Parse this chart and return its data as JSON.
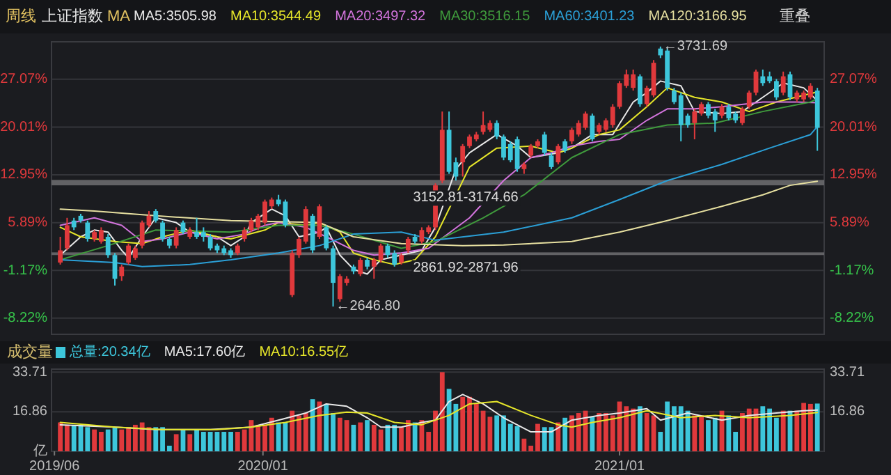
{
  "chart_data": [
    {
      "type": "candlestick",
      "title": "上证指数",
      "legend": "top left",
      "grid": "y",
      "tick_labels": "y",
      "annotations": [
        "周线",
        "MA",
        "重叠",
        {
          "text": "←2646.80",
          "x": "2020-03-13",
          "y": -6.5
        },
        {
          "text": "←3731.69",
          "x": "2021-02-12",
          "y": 31.9
        }
      ],
      "xlim": [
        "2019-05-29",
        "2021-07-30"
      ],
      "ylim": [
        -10.6,
        32.6
      ],
      "yticks": [
        {
          "value": -8.22,
          "label": "-8.22%"
        },
        {
          "value": -1.17,
          "label": "-1.17%"
        },
        {
          "value": 5.89,
          "label": "5.89%"
        },
        {
          "value": 12.95,
          "label": "12.95%"
        },
        {
          "value": 20.01,
          "label": "20.01%"
        },
        {
          "value": 27.07,
          "label": "27.07%"
        }
      ],
      "y2lim": [
        -10.6,
        32.6
      ],
      "y2ticks": [
        {
          "value": -8.22,
          "label": "-8.22%"
        },
        {
          "value": -1.17,
          "label": "-1.17%"
        },
        {
          "value": 5.89,
          "label": "5.89%"
        },
        {
          "value": 12.95,
          "label": "12.95%"
        },
        {
          "value": 20.01,
          "label": "20.01%"
        },
        {
          "value": 27.07,
          "label": "27.07%"
        }
      ],
      "bands": [
        {
          "axis": "y",
          "from": 11.4,
          "to": 12.2,
          "label": "3152.81-3174.66",
          "color": "#6e6e72"
        },
        {
          "axis": "y",
          "from": 1.1,
          "to": 1.5,
          "label": "2861.92-2871.96",
          "color": "#6e6e72"
        }
      ],
      "x": [
        "2019-06-07",
        "2019-06-14",
        "2019-06-21",
        "2019-06-28",
        "2019-07-05",
        "2019-07-12",
        "2019-07-19",
        "2019-07-26",
        "2019-08-02",
        "2019-08-09",
        "2019-08-16",
        "2019-08-23",
        "2019-08-30",
        "2019-09-06",
        "2019-09-13",
        "2019-09-20",
        "2019-09-27",
        "2019-10-04",
        "2019-10-11",
        "2019-10-18",
        "2019-10-25",
        "2019-11-01",
        "2019-11-08",
        "2019-11-15",
        "2019-11-22",
        "2019-11-29",
        "2019-12-06",
        "2019-12-13",
        "2019-12-20",
        "2019-12-27",
        "2020-01-03",
        "2020-01-10",
        "2020-01-17",
        "2020-01-24",
        "2020-01-31",
        "2020-02-07",
        "2020-02-14",
        "2020-02-21",
        "2020-02-28",
        "2020-03-06",
        "2020-03-13",
        "2020-03-20",
        "2020-03-27",
        "2020-04-03",
        "2020-04-10",
        "2020-04-17",
        "2020-04-24",
        "2020-05-01",
        "2020-05-08",
        "2020-05-15",
        "2020-05-22",
        "2020-05-29",
        "2020-06-05",
        "2020-06-12",
        "2020-06-19",
        "2020-06-26",
        "2020-07-03",
        "2020-07-10",
        "2020-07-17",
        "2020-07-24",
        "2020-07-31",
        "2020-08-07",
        "2020-08-14",
        "2020-08-21",
        "2020-08-28",
        "2020-09-04",
        "2020-09-11",
        "2020-09-18",
        "2020-09-25",
        "2020-10-02",
        "2020-10-09",
        "2020-10-16",
        "2020-10-23",
        "2020-10-30",
        "2020-11-06",
        "2020-11-13",
        "2020-11-20",
        "2020-11-27",
        "2020-12-04",
        "2020-12-11",
        "2020-12-18",
        "2020-12-25",
        "2021-01-01",
        "2021-01-08",
        "2021-01-15",
        "2021-01-22",
        "2021-01-29",
        "2021-02-05",
        "2021-02-12",
        "2021-02-19",
        "2021-02-26",
        "2021-03-05",
        "2021-03-12",
        "2021-03-19",
        "2021-03-26",
        "2021-04-02",
        "2021-04-09",
        "2021-04-16",
        "2021-04-23",
        "2021-04-30",
        "2021-05-07",
        "2021-05-14",
        "2021-05-21",
        "2021-05-28",
        "2021-06-04",
        "2021-06-11",
        "2021-06-18",
        "2021-06-25",
        "2021-07-02",
        "2021-07-09",
        "2021-07-16",
        "2021-07-23"
      ],
      "ohlc": [
        [
          0.0,
          3.8,
          -0.3,
          1.8
        ],
        [
          2.1,
          6.6,
          1.8,
          5.5
        ],
        [
          6.2,
          6.6,
          4.8,
          5.2
        ],
        [
          6.9,
          7.2,
          5.9,
          6.2
        ],
        [
          5.9,
          6.2,
          3.1,
          3.5
        ],
        [
          3.5,
          4.8,
          3.1,
          4.5
        ],
        [
          3.1,
          5.2,
          2.8,
          4.8
        ],
        [
          3.8,
          4.2,
          0.7,
          1.1
        ],
        [
          1.1,
          1.4,
          -3.4,
          -2.4
        ],
        [
          -2.0,
          -0.3,
          -2.7,
          -0.6
        ],
        [
          0.0,
          2.8,
          -0.3,
          2.5
        ],
        [
          0.7,
          2.5,
          0.4,
          2.1
        ],
        [
          2.5,
          6.2,
          2.1,
          5.9
        ],
        [
          5.5,
          7.6,
          5.2,
          6.9
        ],
        [
          7.6,
          7.9,
          5.9,
          6.2
        ],
        [
          5.9,
          6.2,
          3.1,
          3.5
        ],
        [
          3.5,
          3.8,
          2.1,
          2.5
        ],
        [
          2.5,
          5.2,
          2.1,
          4.8
        ],
        [
          5.9,
          6.2,
          4.2,
          4.5
        ],
        [
          3.8,
          5.2,
          3.5,
          4.8
        ],
        [
          4.5,
          6.6,
          3.5,
          3.8
        ],
        [
          4.5,
          5.2,
          3.1,
          3.8
        ],
        [
          3.8,
          4.2,
          1.8,
          2.1
        ],
        [
          2.5,
          2.8,
          1.4,
          1.8
        ],
        [
          2.1,
          2.5,
          1.1,
          1.4
        ],
        [
          1.8,
          2.1,
          0.7,
          1.1
        ],
        [
          1.4,
          2.8,
          1.1,
          2.5
        ],
        [
          3.5,
          5.2,
          3.1,
          4.8
        ],
        [
          4.8,
          6.6,
          4.5,
          6.2
        ],
        [
          5.2,
          7.2,
          4.8,
          6.9
        ],
        [
          5.9,
          9.3,
          5.5,
          9.0
        ],
        [
          8.3,
          9.6,
          7.9,
          9.3
        ],
        [
          9.3,
          10.0,
          8.3,
          8.6
        ],
        [
          9.0,
          9.3,
          5.2,
          5.5
        ],
        [
          -4.8,
          1.8,
          -5.1,
          1.4
        ],
        [
          1.1,
          3.8,
          0.7,
          3.5
        ],
        [
          3.1,
          8.3,
          2.8,
          7.9
        ],
        [
          6.9,
          7.2,
          1.4,
          1.8
        ],
        [
          3.8,
          8.6,
          3.5,
          8.3
        ],
        [
          5.2,
          5.5,
          1.8,
          2.1
        ],
        [
          2.1,
          2.5,
          -6.5,
          -3.0
        ],
        [
          -5.4,
          -1.7,
          -5.8,
          -2.0
        ],
        [
          -3.0,
          -2.0,
          -3.4,
          -2.4
        ],
        [
          -0.6,
          -0.3,
          -1.7,
          -1.3
        ],
        [
          -1.7,
          0.7,
          -2.0,
          0.4
        ],
        [
          0.4,
          0.7,
          -1.0,
          -0.6
        ],
        [
          -0.6,
          0.7,
          -2.4,
          0.4
        ],
        [
          0.4,
          2.8,
          0.0,
          2.5
        ],
        [
          2.5,
          2.8,
          0.7,
          1.1
        ],
        [
          1.4,
          1.8,
          -0.6,
          -0.3
        ],
        [
          0.0,
          1.4,
          -0.3,
          1.1
        ],
        [
          1.8,
          3.8,
          1.4,
          3.5
        ],
        [
          3.8,
          4.2,
          2.8,
          3.1
        ],
        [
          3.1,
          5.2,
          2.8,
          4.8
        ],
        [
          4.5,
          5.5,
          4.2,
          5.2
        ],
        [
          5.2,
          11.7,
          4.8,
          11.4
        ],
        [
          12.1,
          22.3,
          11.7,
          19.6
        ],
        [
          19.6,
          22.3,
          13.1,
          13.4
        ],
        [
          14.8,
          15.5,
          12.1,
          12.7
        ],
        [
          14.8,
          17.5,
          12.7,
          17.2
        ],
        [
          17.2,
          18.9,
          16.9,
          18.6
        ],
        [
          18.2,
          19.3,
          17.9,
          18.9
        ],
        [
          19.3,
          22.3,
          18.9,
          20.3
        ],
        [
          19.6,
          21.0,
          19.3,
          20.6
        ],
        [
          20.6,
          21.0,
          18.2,
          18.6
        ],
        [
          18.6,
          18.9,
          15.1,
          15.5
        ],
        [
          17.5,
          17.9,
          14.8,
          15.1
        ],
        [
          18.2,
          18.6,
          13.4,
          13.8
        ],
        [
          13.8,
          14.8,
          13.1,
          14.5
        ],
        [
          15.8,
          17.5,
          15.5,
          17.2
        ],
        [
          17.2,
          18.2,
          16.9,
          17.9
        ],
        [
          18.9,
          19.3,
          15.8,
          16.2
        ],
        [
          15.8,
          16.2,
          13.8,
          14.1
        ],
        [
          14.8,
          17.5,
          14.5,
          17.2
        ],
        [
          17.9,
          18.2,
          16.2,
          16.5
        ],
        [
          17.9,
          19.9,
          17.5,
          19.6
        ],
        [
          18.9,
          21.0,
          18.6,
          20.6
        ],
        [
          19.9,
          22.3,
          19.6,
          22.0
        ],
        [
          21.7,
          22.0,
          17.9,
          18.2
        ],
        [
          19.3,
          20.6,
          18.9,
          20.3
        ],
        [
          19.6,
          21.3,
          19.3,
          21.0
        ],
        [
          20.3,
          23.4,
          19.9,
          23.0
        ],
        [
          23.0,
          26.8,
          22.7,
          26.5
        ],
        [
          26.1,
          28.5,
          25.8,
          27.8
        ],
        [
          25.8,
          28.5,
          25.4,
          27.8
        ],
        [
          27.5,
          27.8,
          23.0,
          23.4
        ],
        [
          23.4,
          26.1,
          23.0,
          25.8
        ],
        [
          24.7,
          29.9,
          24.4,
          29.5
        ],
        [
          31.6,
          31.9,
          30.2,
          30.6
        ],
        [
          31.3,
          31.6,
          25.4,
          25.8
        ],
        [
          25.4,
          25.8,
          23.4,
          23.7
        ],
        [
          24.7,
          25.1,
          17.9,
          20.3
        ],
        [
          21.7,
          22.0,
          19.9,
          20.3
        ],
        [
          20.6,
          22.7,
          18.2,
          22.3
        ],
        [
          22.0,
          23.7,
          21.7,
          23.4
        ],
        [
          23.4,
          23.7,
          21.3,
          21.7
        ],
        [
          22.3,
          22.7,
          19.3,
          21.0
        ],
        [
          21.7,
          23.4,
          21.3,
          23.0
        ],
        [
          23.0,
          23.4,
          21.0,
          21.3
        ],
        [
          22.0,
          22.3,
          20.6,
          21.0
        ],
        [
          20.6,
          23.0,
          20.3,
          22.7
        ],
        [
          23.0,
          25.4,
          22.7,
          25.1
        ],
        [
          25.1,
          28.5,
          24.7,
          28.2
        ],
        [
          27.5,
          28.5,
          26.1,
          26.5
        ],
        [
          27.5,
          28.2,
          26.5,
          26.8
        ],
        [
          26.8,
          27.1,
          24.0,
          24.4
        ],
        [
          25.1,
          28.2,
          24.7,
          27.5
        ],
        [
          27.8,
          28.2,
          24.0,
          24.4
        ],
        [
          24.1,
          25.4,
          23.7,
          25.1
        ],
        [
          24.1,
          25.4,
          23.7,
          25.1
        ],
        [
          24.4,
          26.5,
          24.1,
          26.1
        ],
        [
          25.4,
          25.8,
          16.5,
          19.9
        ]
      ],
      "colors": [
        "#e0393c",
        "#e0393c",
        "#3dc6db",
        "#3dc6db",
        "#3dc6db",
        "#e0393c",
        "#e0393c",
        "#3dc6db",
        "#3dc6db",
        "#e0393c",
        "#e0393c",
        "#e0393c",
        "#e0393c",
        "#e0393c",
        "#3dc6db",
        "#3dc6db",
        "#3dc6db",
        "#e0393c",
        "#3dc6db",
        "#e0393c",
        "#3dc6db",
        "#3dc6db",
        "#3dc6db",
        "#3dc6db",
        "#3dc6db",
        "#3dc6db",
        "#e0393c",
        "#e0393c",
        "#e0393c",
        "#e0393c",
        "#e0393c",
        "#e0393c",
        "#3dc6db",
        "#3dc6db",
        "#e0393c",
        "#e0393c",
        "#e0393c",
        "#3dc6db",
        "#e0393c",
        "#3dc6db",
        "#3dc6db",
        "#e0393c",
        "#e0393c",
        "#3dc6db",
        "#e0393c",
        "#3dc6db",
        "#e0393c",
        "#e0393c",
        "#3dc6db",
        "#3dc6db",
        "#e0393c",
        "#e0393c",
        "#3dc6db",
        "#e0393c",
        "#e0393c",
        "#e0393c",
        "#e0393c",
        "#3dc6db",
        "#3dc6db",
        "#e0393c",
        "#e0393c",
        "#e0393c",
        "#e0393c",
        "#e0393c",
        "#3dc6db",
        "#3dc6db",
        "#3dc6db",
        "#3dc6db",
        "#e0393c",
        "#e0393c",
        "#e0393c",
        "#3dc6db",
        "#3dc6db",
        "#e0393c",
        "#3dc6db",
        "#e0393c",
        "#e0393c",
        "#e0393c",
        "#3dc6db",
        "#e0393c",
        "#e0393c",
        "#e0393c",
        "#e0393c",
        "#e0393c",
        "#e0393c",
        "#3dc6db",
        "#e0393c",
        "#e0393c",
        "#3dc6db",
        "#3dc6db",
        "#3dc6db",
        "#3dc6db",
        "#3dc6db",
        "#e0393c",
        "#e0393c",
        "#3dc6db",
        "#3dc6db",
        "#e0393c",
        "#3dc6db",
        "#3dc6db",
        "#e0393c",
        "#e0393c",
        "#e0393c",
        "#3dc6db",
        "#3dc6db",
        "#3dc6db",
        "#e0393c",
        "#3dc6db",
        "#e0393c",
        "#e0393c",
        "#e0393c",
        "#3dc6db"
      ],
      "series": [
        {
          "name": "MA5:3505.98",
          "type": "line",
          "color": "#e8e8e8",
          "x": [
            "2019-06-07",
            "2019-06-28",
            "2019-07-12",
            "2019-07-26",
            "2019-08-09",
            "2019-08-16",
            "2019-08-30",
            "2019-09-13",
            "2019-10-04",
            "2019-10-18",
            "2019-11-01",
            "2019-11-15",
            "2019-11-29",
            "2019-12-13",
            "2019-12-20",
            "2020-01-10",
            "2020-01-24",
            "2020-02-07",
            "2020-02-28",
            "2020-03-06",
            "2020-03-20",
            "2020-04-03",
            "2020-04-17",
            "2020-05-01",
            "2020-05-22",
            "2020-06-12",
            "2020-06-26",
            "2020-07-17",
            "2020-07-31",
            "2020-08-28",
            "2020-09-18",
            "2020-10-02",
            "2020-10-30",
            "2020-11-13",
            "2020-12-04",
            "2020-12-25",
            "2021-01-15",
            "2021-01-29",
            "2021-02-12",
            "2021-03-05",
            "2021-03-19",
            "2021-04-16",
            "2021-05-07",
            "2021-05-21",
            "2021-06-18",
            "2021-07-09",
            "2021-07-23"
          ],
          "values": [
            1.1,
            3.8,
            4.8,
            4.5,
            1.8,
            0.7,
            3.8,
            6.6,
            5.9,
            4.5,
            4.2,
            3.8,
            2.5,
            3.8,
            5.9,
            7.9,
            6.9,
            3.8,
            4.5,
            5.2,
            1.1,
            -1.0,
            -1.7,
            0.4,
            1.1,
            1.8,
            5.2,
            13.8,
            16.2,
            18.9,
            17.2,
            15.5,
            16.2,
            16.9,
            18.9,
            18.9,
            23.7,
            25.1,
            26.8,
            26.1,
            22.3,
            22.0,
            22.3,
            23.7,
            26.5,
            25.8,
            23.9
          ]
        },
        {
          "name": "MA10:3544.49",
          "type": "line",
          "color": "#e6e62a",
          "x": [
            "2019-06-07",
            "2019-06-28",
            "2019-08-02",
            "2019-08-30",
            "2019-09-20",
            "2019-10-18",
            "2019-11-15",
            "2019-11-29",
            "2020-01-03",
            "2020-01-17",
            "2020-02-14",
            "2020-02-28",
            "2020-03-20",
            "2020-04-03",
            "2020-04-24",
            "2020-05-15",
            "2020-06-05",
            "2020-06-26",
            "2020-07-31",
            "2020-08-28",
            "2020-10-02",
            "2020-10-30",
            "2020-11-13",
            "2020-12-11",
            "2021-01-01",
            "2021-01-29",
            "2021-02-19",
            "2021-03-19",
            "2021-04-16",
            "2021-05-14",
            "2021-06-11",
            "2021-07-09",
            "2021-07-23"
          ],
          "values": [
            5.2,
            3.8,
            3.1,
            2.8,
            3.8,
            4.8,
            3.8,
            3.5,
            4.8,
            5.9,
            5.5,
            5.9,
            4.5,
            1.4,
            0.4,
            -0.3,
            0.4,
            3.8,
            14.1,
            16.9,
            17.2,
            16.2,
            16.9,
            18.9,
            19.6,
            23.0,
            25.8,
            24.4,
            23.7,
            22.3,
            23.7,
            24.7,
            25.2
          ]
        },
        {
          "name": "MA20:3497.32",
          "type": "line",
          "color": "#d274dc",
          "x": [
            "2019-06-07",
            "2019-07-12",
            "2019-08-09",
            "2019-08-30",
            "2019-09-20",
            "2019-10-18",
            "2019-11-15",
            "2019-12-13",
            "2020-01-03",
            "2020-01-17",
            "2020-02-14",
            "2020-03-06",
            "2020-04-03",
            "2020-04-24",
            "2020-05-22",
            "2020-06-19",
            "2020-07-31",
            "2020-09-04",
            "2020-10-02",
            "2020-10-23",
            "2020-11-13",
            "2020-12-11",
            "2021-01-01",
            "2021-01-29",
            "2021-02-19",
            "2021-03-19",
            "2021-04-16",
            "2021-05-28",
            "2021-07-02",
            "2021-07-23"
          ],
          "values": [
            5.5,
            6.6,
            5.5,
            3.1,
            3.5,
            4.5,
            3.5,
            4.2,
            5.5,
            5.9,
            5.2,
            3.8,
            1.8,
            1.1,
            1.4,
            2.1,
            6.6,
            12.1,
            15.5,
            16.2,
            17.2,
            17.9,
            18.2,
            21.0,
            22.7,
            22.7,
            23.0,
            23.7,
            23.7,
            23.6
          ]
        },
        {
          "name": "MA30:3516.15",
          "type": "line",
          "color": "#3f9a3c",
          "x": [
            "2019-06-07",
            "2019-07-26",
            "2019-09-13",
            "2019-11-29",
            "2020-01-17",
            "2020-02-28",
            "2020-04-03",
            "2020-05-22",
            "2020-06-26",
            "2020-08-14",
            "2020-09-25",
            "2020-11-13",
            "2021-01-01",
            "2021-02-19",
            "2021-04-09",
            "2021-05-28",
            "2021-07-16",
            "2021-07-23"
          ],
          "values": [
            0.4,
            2.5,
            4.8,
            4.5,
            5.5,
            5.5,
            4.2,
            2.1,
            3.1,
            6.6,
            10.0,
            15.5,
            18.9,
            20.3,
            20.6,
            22.3,
            23.7,
            24.2
          ]
        },
        {
          "name": "MA60:3401.23",
          "type": "line",
          "color": "#2b9fd6",
          "x": [
            "2019-06-07",
            "2019-08-02",
            "2019-08-30",
            "2019-10-18",
            "2019-11-29",
            "2020-01-17",
            "2020-02-28",
            "2020-04-03",
            "2020-05-22",
            "2020-06-26",
            "2020-09-04",
            "2020-11-13",
            "2021-01-01",
            "2021-02-19",
            "2021-04-16",
            "2021-06-04",
            "2021-07-16",
            "2021-07-23"
          ],
          "values": [
            0.4,
            0.0,
            -0.6,
            -0.3,
            0.4,
            1.4,
            2.5,
            4.2,
            4.5,
            3.3,
            4.5,
            6.6,
            9.3,
            12.1,
            14.5,
            16.9,
            18.9,
            20.1
          ]
        },
        {
          "name": "MA120:3166.95",
          "type": "line",
          "color": "#e6dfa0",
          "x": [
            "2019-06-07",
            "2019-07-12",
            "2019-09-13",
            "2019-11-29",
            "2020-02-28",
            "2020-04-03",
            "2020-05-22",
            "2020-07-24",
            "2020-09-04",
            "2020-11-13",
            "2021-01-01",
            "2021-02-19",
            "2021-04-16",
            "2021-05-28",
            "2021-06-25",
            "2021-07-23"
          ],
          "values": [
            7.9,
            7.6,
            6.9,
            6.2,
            5.9,
            3.8,
            2.8,
            2.5,
            2.6,
            3.1,
            4.5,
            6.2,
            8.3,
            10.0,
            11.4,
            12.0
          ]
        }
      ]
    },
    {
      "type": "bar",
      "title": "成交量",
      "legend": "top left",
      "grid": "y",
      "xlim": [
        "2019-05-29",
        "2021-07-30"
      ],
      "xticks": [
        {
          "value": "2019-06-01",
          "label": "2019/06"
        },
        {
          "value": "2020-01-01",
          "label": "2020/01"
        },
        {
          "value": "2021-01-01",
          "label": "2021/01"
        }
      ],
      "ylim": [
        0,
        35
      ],
      "yticks": [
        {
          "value": 0,
          "label": "亿"
        },
        16.86,
        33.71
      ],
      "y2lim": [
        0,
        35
      ],
      "y2ticks": [
        16.86,
        33.71
      ],
      "x": [
        "2019-06-07",
        "2019-06-14",
        "2019-06-21",
        "2019-06-28",
        "2019-07-05",
        "2019-07-12",
        "2019-07-19",
        "2019-07-26",
        "2019-08-02",
        "2019-08-09",
        "2019-08-16",
        "2019-08-23",
        "2019-08-30",
        "2019-09-06",
        "2019-09-13",
        "2019-09-20",
        "2019-09-27",
        "2019-10-04",
        "2019-10-11",
        "2019-10-18",
        "2019-10-25",
        "2019-11-01",
        "2019-11-08",
        "2019-11-15",
        "2019-11-22",
        "2019-11-29",
        "2019-12-06",
        "2019-12-13",
        "2019-12-20",
        "2019-12-27",
        "2020-01-03",
        "2020-01-10",
        "2020-01-17",
        "2020-01-24",
        "2020-01-31",
        "2020-02-07",
        "2020-02-14",
        "2020-02-21",
        "2020-02-28",
        "2020-03-06",
        "2020-03-13",
        "2020-03-20",
        "2020-03-27",
        "2020-04-03",
        "2020-04-10",
        "2020-04-17",
        "2020-04-24",
        "2020-05-01",
        "2020-05-08",
        "2020-05-15",
        "2020-05-22",
        "2020-05-29",
        "2020-06-05",
        "2020-06-12",
        "2020-06-19",
        "2020-06-26",
        "2020-07-03",
        "2020-07-10",
        "2020-07-17",
        "2020-07-24",
        "2020-07-31",
        "2020-08-07",
        "2020-08-14",
        "2020-08-21",
        "2020-08-28",
        "2020-09-04",
        "2020-09-11",
        "2020-09-18",
        "2020-09-25",
        "2020-10-02",
        "2020-10-09",
        "2020-10-16",
        "2020-10-23",
        "2020-10-30",
        "2020-11-06",
        "2020-11-13",
        "2020-11-20",
        "2020-11-27",
        "2020-12-04",
        "2020-12-11",
        "2020-12-18",
        "2020-12-25",
        "2021-01-01",
        "2021-01-08",
        "2021-01-15",
        "2021-01-22",
        "2021-01-29",
        "2021-02-05",
        "2021-02-12",
        "2021-02-19",
        "2021-02-26",
        "2021-03-05",
        "2021-03-12",
        "2021-03-19",
        "2021-03-26",
        "2021-04-02",
        "2021-04-09",
        "2021-04-16",
        "2021-04-23",
        "2021-04-30",
        "2021-05-07",
        "2021-05-14",
        "2021-05-21",
        "2021-05-28",
        "2021-06-04",
        "2021-06-11",
        "2021-06-18",
        "2021-06-25",
        "2021-07-02",
        "2021-07-09",
        "2021-07-16",
        "2021-07-23"
      ],
      "series": [
        {
          "name": "总量:20.34亿",
          "type": "bar",
          "values": [
            12.3,
            11.3,
            11.3,
            11.3,
            10.3,
            9.3,
            8.3,
            9.3,
            10.3,
            9.3,
            10.3,
            11.3,
            12.3,
            10.3,
            10.3,
            10.3,
            2.4,
            7.3,
            9.3,
            7.3,
            9.3,
            8.3,
            8.3,
            8.3,
            8.3,
            8.3,
            8.3,
            9.3,
            13.3,
            11.3,
            11.3,
            14.3,
            12.3,
            12.3,
            17.3,
            15.3,
            16.3,
            22.2,
            21.2,
            20.2,
            16.3,
            14.3,
            13.3,
            11.3,
            12.3,
            13.3,
            11.3,
            9.3,
            11.3,
            11.3,
            10.3,
            13.3,
            12.3,
            13.3,
            8.3,
            17.3,
            33.71,
            26.6,
            20.2,
            23.2,
            23.2,
            20.2,
            17.3,
            14.7,
            15.3,
            15.3,
            11.7,
            10.7,
            5.4,
            2.4,
            11.7,
            10.3,
            10.3,
            12.3,
            14.3,
            15.3,
            16.3,
            17.3,
            14.7,
            16.3,
            16.3,
            15.3,
            21.2,
            19.2,
            18.2,
            19.2,
            16.3,
            15.3,
            8.3,
            21.2,
            19.2,
            19.2,
            17.3,
            15.3,
            15.3,
            13.3,
            14.3,
            17.3,
            15.3,
            8.3,
            16.3,
            18.2,
            18.2,
            19.2,
            18.2,
            14.3,
            17.3,
            17.3,
            17.3,
            20.6,
            20.2,
            20.34
          ],
          "colors": [
            "#e0393c",
            "#e0393c",
            "#3dc6db",
            "#3dc6db",
            "#3dc6db",
            "#e0393c",
            "#e0393c",
            "#3dc6db",
            "#3dc6db",
            "#e0393c",
            "#e0393c",
            "#e0393c",
            "#e0393c",
            "#e0393c",
            "#3dc6db",
            "#3dc6db",
            "#3dc6db",
            "#e0393c",
            "#3dc6db",
            "#e0393c",
            "#3dc6db",
            "#3dc6db",
            "#3dc6db",
            "#3dc6db",
            "#3dc6db",
            "#3dc6db",
            "#e0393c",
            "#e0393c",
            "#e0393c",
            "#e0393c",
            "#e0393c",
            "#e0393c",
            "#3dc6db",
            "#3dc6db",
            "#e0393c",
            "#e0393c",
            "#e0393c",
            "#3dc6db",
            "#e0393c",
            "#3dc6db",
            "#3dc6db",
            "#e0393c",
            "#e0393c",
            "#3dc6db",
            "#e0393c",
            "#3dc6db",
            "#e0393c",
            "#e0393c",
            "#3dc6db",
            "#3dc6db",
            "#e0393c",
            "#e0393c",
            "#3dc6db",
            "#e0393c",
            "#e0393c",
            "#e0393c",
            "#e0393c",
            "#3dc6db",
            "#3dc6db",
            "#e0393c",
            "#e0393c",
            "#e0393c",
            "#e0393c",
            "#e0393c",
            "#3dc6db",
            "#3dc6db",
            "#3dc6db",
            "#3dc6db",
            "#e0393c",
            "#e0393c",
            "#e0393c",
            "#3dc6db",
            "#3dc6db",
            "#e0393c",
            "#3dc6db",
            "#e0393c",
            "#e0393c",
            "#e0393c",
            "#3dc6db",
            "#e0393c",
            "#e0393c",
            "#e0393c",
            "#e0393c",
            "#e0393c",
            "#e0393c",
            "#3dc6db",
            "#e0393c",
            "#e0393c",
            "#3dc6db",
            "#3dc6db",
            "#3dc6db",
            "#3dc6db",
            "#3dc6db",
            "#e0393c",
            "#e0393c",
            "#3dc6db",
            "#3dc6db",
            "#e0393c",
            "#3dc6db",
            "#3dc6db",
            "#e0393c",
            "#e0393c",
            "#e0393c",
            "#3dc6db",
            "#3dc6db",
            "#3dc6db",
            "#e0393c",
            "#3dc6db",
            "#e0393c",
            "#e0393c",
            "#e0393c",
            "#3dc6db"
          ]
        },
        {
          "name": "MA5:17.60亿",
          "type": "line",
          "color": "#e8e8e8",
          "x": [
            "2019-06-07",
            "2019-08-02",
            "2019-09-13",
            "2019-11-08",
            "2019-12-20",
            "2020-01-17",
            "2020-02-14",
            "2020-03-06",
            "2020-03-27",
            "2020-04-17",
            "2020-05-01",
            "2020-05-22",
            "2020-06-12",
            "2020-06-26",
            "2020-07-10",
            "2020-07-24",
            "2020-08-14",
            "2020-09-04",
            "2020-10-02",
            "2020-10-23",
            "2020-11-13",
            "2020-12-11",
            "2021-01-01",
            "2021-01-29",
            "2021-02-12",
            "2021-03-12",
            "2021-04-16",
            "2021-05-14",
            "2021-06-11",
            "2021-07-09",
            "2021-07-23"
          ],
          "values": [
            11.3,
            10.3,
            9.3,
            9.3,
            10.3,
            13.3,
            16.3,
            20.2,
            19.2,
            14.3,
            10.3,
            10.3,
            12.3,
            13.3,
            21.2,
            24.2,
            20.2,
            14.3,
            8.3,
            8.3,
            13.3,
            15.3,
            16.3,
            18.2,
            13.3,
            16.3,
            13.3,
            15.3,
            16.3,
            17.3,
            17.6
          ]
        },
        {
          "name": "MA10:16.55亿",
          "type": "line",
          "color": "#e6e62a",
          "x": [
            "2019-06-07",
            "2019-08-02",
            "2019-09-20",
            "2019-11-15",
            "2019-12-20",
            "2020-01-24",
            "2020-02-28",
            "2020-03-27",
            "2020-04-17",
            "2020-05-15",
            "2020-06-12",
            "2020-07-10",
            "2020-07-31",
            "2020-08-28",
            "2020-10-02",
            "2020-10-30",
            "2020-11-13",
            "2020-12-04",
            "2021-01-01",
            "2021-01-29",
            "2021-03-05",
            "2021-04-09",
            "2021-05-14",
            "2021-06-25",
            "2021-07-23"
          ],
          "values": [
            12.3,
            10.3,
            9.3,
            9.3,
            10.3,
            12.3,
            15.3,
            16.7,
            16.3,
            12.3,
            11.3,
            15.3,
            20.2,
            21.2,
            15.3,
            11.3,
            10.3,
            12.3,
            14.3,
            17.3,
            14.3,
            15.3,
            14.3,
            15.3,
            16.55
          ]
        }
      ]
    }
  ]
}
